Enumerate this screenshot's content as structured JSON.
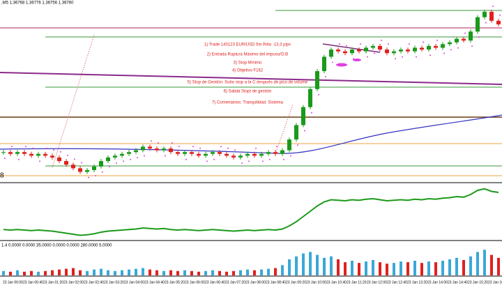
{
  "chart_data": {
    "type": "candlestick",
    "header": ",M5  1.36768 1.36776 1.36756 1.36760",
    "volume_header": "1.4 0.0000 0.0000 35.0000 0.0000 0.0000 280.0000 5.0000",
    "side_label": "8",
    "annotations": [
      "1) Trade 140123 EUR/USD 5m Ritio -13.3 pips",
      "2) Entrada Ruptura Máximo del impuso/O.B",
      "3) Stop Mínimo",
      "4) Objetivo F162",
      "5) Stop de Gestión: Subo stop a la C después de pico de volume",
      "6) Salida Stopt de gestión",
      "7) Comentarios: Tranquilidad. Sistema"
    ],
    "time_labels": [
      "23 Jan 00:00",
      "23 Jan 00:40",
      "23 Jan 01:20",
      "23 Jan 02:00",
      "23 Jan 02:40",
      "23 Jan 03:20",
      "23 Jan 04:00",
      "23 Jan 04:40",
      "23 Jan 05:20",
      "23 Jan 06:00",
      "23 Jan 06:40",
      "23 Jan 07:20",
      "23 Jan 08:00",
      "23 Jan 08:40",
      "23 Jan 09:20",
      "23 Jan 10:00",
      "23 Jan 10:40",
      "23 Jan 11:20",
      "23 Jan 12:00",
      "23 Jan 12:40",
      "23 Jan 13:20",
      "23 Jan 14:00",
      "23 Jan 14:40",
      "23 Jan 15:20",
      "23 Jan 16:00"
    ],
    "ylim": [
      0,
      100
    ],
    "closes": [
      17,
      16,
      17,
      16,
      15,
      16,
      15,
      14,
      12,
      10,
      8,
      6,
      7,
      9,
      12,
      14,
      15,
      16,
      17,
      18,
      20,
      19,
      18,
      19,
      17,
      16,
      17,
      16,
      15,
      16,
      17,
      16,
      15,
      14,
      15,
      16,
      15,
      16,
      17,
      16,
      18,
      24,
      32,
      42,
      52,
      62,
      70,
      74,
      73,
      72,
      74,
      73,
      75,
      76,
      74,
      72,
      73,
      74,
      73,
      75,
      74,
      76,
      75,
      77,
      78,
      80,
      79,
      84,
      92,
      95,
      90,
      88
    ],
    "vlim": [
      0,
      40
    ],
    "volumes": [
      6,
      5,
      7,
      5,
      6,
      5,
      6,
      7,
      8,
      9,
      10,
      7,
      6,
      8,
      9,
      7,
      6,
      7,
      8,
      9,
      10,
      8,
      7,
      6,
      7,
      6,
      7,
      6,
      5,
      6,
      7,
      6,
      5,
      6,
      7,
      8,
      7,
      8,
      9,
      10,
      14,
      22,
      26,
      30,
      32,
      28,
      24,
      26,
      22,
      18,
      20,
      17,
      19,
      21,
      18,
      16,
      17,
      19,
      18,
      20,
      17,
      19,
      18,
      20,
      22,
      24,
      21,
      26,
      32,
      35,
      28,
      24
    ]
  }
}
